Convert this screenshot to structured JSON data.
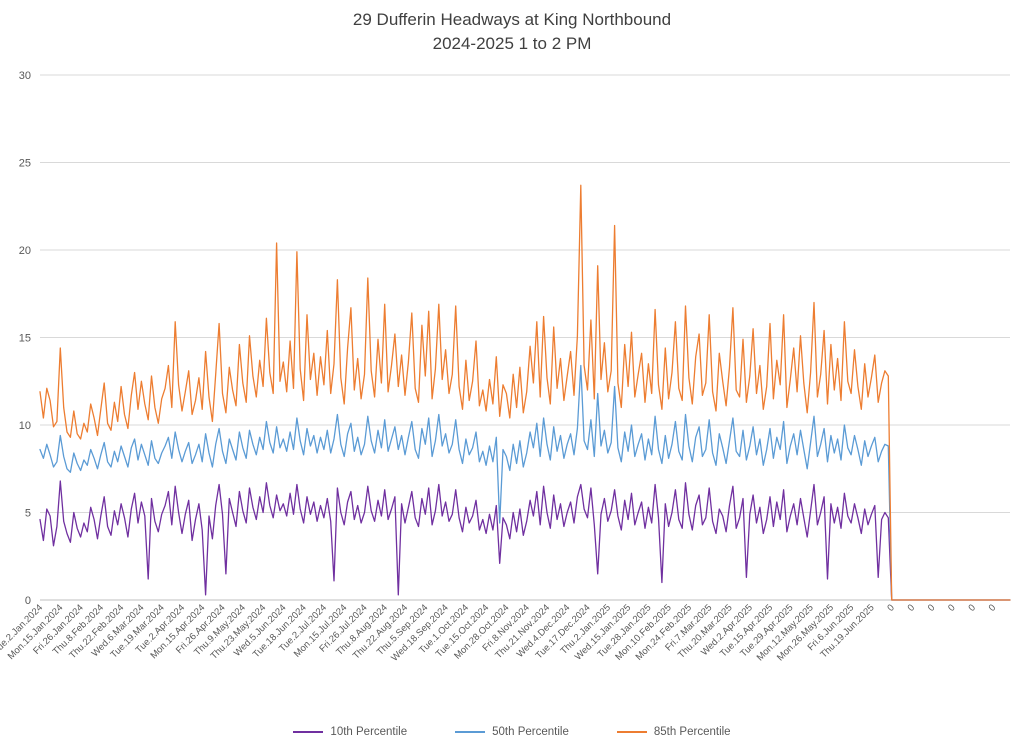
{
  "title": {
    "line1": "29 Dufferin Headways at King Northbound",
    "line2": "2024-2025 1 to 2 PM"
  },
  "colors": {
    "p10": "#7030A0",
    "p50": "#5B9BD5",
    "p85": "#ED7D31",
    "title_text": "#404040",
    "tick_text": "#595959",
    "gridline": "#D9D9D9",
    "axis_line": "#BFBFBF",
    "background": "#FFFFFF"
  },
  "chart_data": {
    "type": "line",
    "title": "29 Dufferin Headways at King Northbound",
    "subtitle": "2024-2025 1 to 2 PM",
    "ylim": [
      0,
      30
    ],
    "yticks": [
      0,
      5,
      10,
      15,
      20,
      25,
      30
    ],
    "grid": true,
    "legend_position": "bottom",
    "tick_every": 6,
    "x_tick_labels": [
      "Tue.2.Jan.2024",
      "Mon.15.Jan.2024",
      "Fri.26.Jan.2024",
      "Thu.8.Feb.2024",
      "Thu.22.Feb.2024",
      "Wed.6.Mar.2024",
      "Tue.19.Mar.2024",
      "Tue.2.Apr.2024",
      "Mon.15.Apr.2024",
      "Fri.26.Apr.2024",
      "Thu.9.May.2024",
      "Thu.23.May.2024",
      "Wed.5.Jun.2024",
      "Tue.18.Jun.2024",
      "Tue.2.Jul.2024",
      "Mon.15.Jul.2024",
      "Fri.26.Jul.2024",
      "Thu.8.Aug.2024",
      "Thu.22.Aug.2024",
      "Thu.5.Sep.2024",
      "Wed.18.Sep.2024",
      "Tue.1.Oct.2024",
      "Tue.15.Oct.2024",
      "Mon.28.Oct.2024",
      "Fri.8.Nov.2024",
      "Thu.21.Nov.2024",
      "Wed.4.Dec.2024",
      "Tue.17.Dec.2024",
      "Thu.2.Jan.2025",
      "Wed.15.Jan.2025",
      "Tue.28.Jan.2025",
      "Mon.10.Feb.2025",
      "Mon.24.Feb.2025",
      "Fri.7.Mar.2025",
      "Thu.20.Mar.2025",
      "Wed.2.Apr.2025",
      "Tue.15.Apr.2025",
      "Tue.29.Apr.2025",
      "Mon.12.May.2025",
      "Mon.26.May.2025",
      "Fri.6.Jun.2025",
      "Thu.19.Jun.2025",
      "0",
      "0",
      "0",
      "0",
      "0",
      "0"
    ],
    "series": [
      {
        "name": "10th Percentile",
        "color": "#7030A0",
        "values": [
          4.6,
          3.4,
          5.2,
          4.8,
          3.1,
          4.2,
          6.8,
          4.5,
          3.8,
          3.3,
          5.0,
          4.1,
          3.6,
          4.4,
          3.9,
          5.3,
          4.6,
          3.5,
          4.8,
          5.9,
          4.2,
          3.7,
          5.1,
          4.3,
          5.5,
          4.7,
          3.6,
          5.2,
          6.1,
          4.4,
          5.6,
          4.8,
          1.2,
          5.8,
          4.5,
          3.9,
          4.9,
          5.4,
          6.2,
          4.3,
          6.5,
          5.0,
          3.8,
          4.9,
          5.7,
          3.4,
          4.6,
          5.5,
          4.0,
          0.3,
          4.8,
          3.5,
          5.4,
          6.6,
          4.9,
          1.5,
          5.8,
          5.0,
          4.2,
          6.2,
          5.1,
          4.4,
          6.4,
          5.3,
          4.6,
          5.9,
          5.0,
          6.7,
          5.4,
          4.7,
          6.0,
          5.1,
          5.5,
          4.8,
          6.1,
          4.9,
          6.6,
          5.2,
          4.4,
          5.9,
          4.9,
          5.6,
          4.5,
          5.4,
          4.7,
          5.8,
          4.5,
          1.1,
          6.4,
          5.0,
          4.3,
          5.6,
          6.2,
          4.6,
          5.4,
          4.4,
          5.0,
          6.5,
          5.1,
          4.5,
          5.7,
          4.8,
          6.3,
          4.6,
          5.2,
          5.9,
          0.3,
          5.5,
          4.4,
          5.3,
          6.2,
          4.7,
          4.2,
          5.8,
          4.9,
          6.4,
          4.3,
          5.1,
          6.6,
          4.8,
          5.6,
          4.5,
          4.9,
          6.3,
          4.7,
          3.9,
          5.3,
          4.4,
          4.8,
          5.7,
          4.0,
          4.6,
          3.8,
          4.9,
          4.0,
          5.4,
          2.1,
          4.7,
          4.3,
          3.5,
          5.0,
          3.9,
          5.2,
          3.7,
          4.5,
          5.7,
          4.8,
          6.2,
          4.3,
          6.5,
          5.0,
          4.1,
          6.0,
          4.6,
          5.5,
          4.2,
          5.0,
          5.6,
          4.4,
          5.9,
          6.6,
          5.2,
          4.7,
          6.4,
          4.3,
          1.5,
          4.9,
          5.8,
          4.5,
          5.1,
          6.3,
          4.8,
          4.0,
          5.7,
          4.6,
          6.1,
          4.3,
          5.0,
          5.6,
          4.1,
          5.3,
          4.4,
          6.6,
          4.7,
          1.0,
          5.5,
          4.2,
          5.0,
          6.3,
          4.6,
          4.1,
          6.7,
          4.9,
          4.0,
          5.4,
          6.0,
          4.3,
          4.7,
          6.4,
          4.5,
          3.8,
          5.2,
          4.8,
          3.9,
          5.4,
          6.5,
          4.1,
          4.7,
          5.8,
          1.3,
          4.9,
          6.0,
          4.4,
          5.3,
          3.8,
          4.6,
          5.9,
          4.2,
          5.6,
          4.6,
          6.3,
          3.9,
          4.8,
          5.5,
          4.3,
          5.8,
          4.7,
          3.6,
          5.1,
          6.6,
          4.3,
          5.0,
          5.9,
          1.2,
          5.5,
          4.4,
          5.3,
          4.1,
          6.1,
          4.8,
          4.4,
          5.5,
          4.7,
          3.8,
          5.2,
          4.3,
          4.9,
          5.4,
          1.3,
          4.6,
          5.0,
          4.7,
          0,
          0,
          0,
          0,
          0,
          0,
          0,
          0,
          0,
          0,
          0,
          0,
          0,
          0,
          0,
          0,
          0,
          0,
          0,
          0,
          0,
          0,
          0,
          0,
          0,
          0,
          0,
          0,
          0,
          0,
          0,
          0,
          0,
          0,
          0,
          0
        ]
      },
      {
        "name": "50th Percentile",
        "color": "#5B9BD5",
        "values": [
          8.6,
          8.1,
          8.9,
          8.3,
          7.6,
          7.9,
          9.4,
          8.2,
          7.5,
          7.3,
          8.4,
          7.8,
          7.4,
          8.0,
          7.7,
          8.6,
          8.1,
          7.5,
          8.3,
          9.0,
          7.9,
          7.6,
          8.5,
          7.9,
          8.8,
          8.2,
          7.6,
          8.7,
          9.2,
          8.0,
          8.9,
          8.3,
          7.7,
          9.1,
          8.1,
          7.8,
          8.4,
          8.8,
          9.3,
          8.1,
          9.6,
          8.6,
          7.9,
          8.5,
          9.0,
          7.8,
          8.3,
          8.9,
          7.9,
          9.5,
          8.4,
          7.6,
          8.9,
          9.8,
          8.5,
          7.8,
          9.2,
          8.6,
          8.0,
          9.6,
          8.7,
          8.1,
          9.7,
          8.9,
          8.3,
          9.3,
          8.6,
          10.2,
          9.0,
          8.4,
          9.9,
          8.7,
          9.2,
          8.5,
          9.6,
          8.6,
          10.4,
          9.1,
          8.3,
          9.8,
          8.8,
          9.4,
          8.4,
          9.3,
          8.6,
          9.7,
          8.4,
          9.2,
          10.6,
          8.9,
          8.2,
          9.5,
          10.1,
          8.5,
          9.3,
          8.3,
          8.9,
          10.5,
          9.1,
          8.4,
          9.7,
          8.7,
          10.3,
          8.5,
          9.2,
          9.9,
          8.6,
          9.4,
          8.3,
          9.3,
          10.2,
          8.6,
          8.1,
          9.8,
          8.9,
          10.4,
          8.2,
          9.1,
          10.6,
          8.8,
          9.5,
          8.4,
          8.9,
          10.3,
          8.6,
          7.8,
          9.2,
          8.3,
          8.7,
          9.6,
          7.9,
          8.5,
          7.7,
          8.8,
          7.9,
          9.3,
          4.4,
          8.6,
          8.2,
          7.4,
          8.9,
          7.8,
          9.1,
          7.6,
          8.4,
          9.6,
          8.7,
          10.1,
          8.2,
          10.4,
          8.9,
          8.0,
          9.9,
          8.5,
          9.4,
          8.1,
          8.9,
          9.5,
          8.3,
          9.8,
          13.4,
          9.1,
          8.6,
          10.3,
          8.2,
          11.8,
          8.8,
          9.7,
          8.4,
          9.0,
          12.2,
          8.7,
          7.9,
          9.6,
          8.5,
          10.0,
          8.2,
          8.9,
          9.5,
          8.0,
          9.2,
          8.3,
          10.5,
          8.6,
          7.8,
          9.4,
          8.1,
          8.9,
          10.2,
          8.5,
          8.0,
          10.6,
          8.8,
          7.9,
          9.3,
          9.9,
          8.2,
          8.6,
          10.3,
          8.4,
          7.7,
          9.5,
          8.7,
          7.8,
          9.1,
          10.4,
          8.5,
          8.2,
          9.7,
          8.0,
          8.8,
          9.9,
          8.3,
          9.2,
          7.7,
          8.6,
          9.8,
          8.1,
          9.3,
          8.6,
          10.2,
          7.8,
          8.8,
          9.5,
          8.3,
          9.7,
          8.6,
          7.5,
          9.0,
          10.5,
          8.2,
          8.9,
          9.8,
          7.9,
          9.4,
          8.4,
          9.2,
          8.0,
          10.0,
          8.7,
          8.3,
          9.4,
          8.6,
          7.7,
          9.1,
          8.2,
          8.8,
          9.3,
          7.9,
          8.5,
          8.9,
          8.8,
          0,
          0,
          0,
          0,
          0,
          0,
          0,
          0,
          0,
          0,
          0,
          0,
          0,
          0,
          0,
          0,
          0,
          0,
          0,
          0,
          0,
          0,
          0,
          0,
          0,
          0,
          0,
          0,
          0,
          0,
          0,
          0,
          0,
          0,
          0,
          0
        ]
      },
      {
        "name": "85th Percentile",
        "color": "#ED7D31",
        "values": [
          11.9,
          10.4,
          12.1,
          11.4,
          9.9,
          10.2,
          14.4,
          11.0,
          9.6,
          9.3,
          10.8,
          9.5,
          9.2,
          10.1,
          9.6,
          11.2,
          10.4,
          9.4,
          10.9,
          12.4,
          10.1,
          9.7,
          11.3,
          10.2,
          12.2,
          10.6,
          9.8,
          11.7,
          13.0,
          10.9,
          12.5,
          11.2,
          10.3,
          12.8,
          11.0,
          10.1,
          11.5,
          12.1,
          13.4,
          11.0,
          15.9,
          12.3,
          10.8,
          11.9,
          13.1,
          10.6,
          11.4,
          12.7,
          10.9,
          14.2,
          11.6,
          10.2,
          12.9,
          15.8,
          11.8,
          10.7,
          13.3,
          12.0,
          11.1,
          14.6,
          12.4,
          11.3,
          15.1,
          12.8,
          11.6,
          13.7,
          12.2,
          16.1,
          13.0,
          11.8,
          20.4,
          12.5,
          13.6,
          11.9,
          14.8,
          12.1,
          19.9,
          13.2,
          11.4,
          16.3,
          12.6,
          14.1,
          11.7,
          13.9,
          12.3,
          15.4,
          11.8,
          13.5,
          18.3,
          12.7,
          11.2,
          14.4,
          16.7,
          12.0,
          13.8,
          11.5,
          12.9,
          18.4,
          13.1,
          11.6,
          14.9,
          12.4,
          16.9,
          11.9,
          13.4,
          15.2,
          12.2,
          14.0,
          11.7,
          13.6,
          16.4,
          12.1,
          11.3,
          15.7,
          12.8,
          16.5,
          11.5,
          13.2,
          16.9,
          12.6,
          14.3,
          11.8,
          12.9,
          16.8,
          12.2,
          10.9,
          13.7,
          11.4,
          12.5,
          14.8,
          11.1,
          12.0,
          10.8,
          12.6,
          11.2,
          13.9,
          10.5,
          12.3,
          11.8,
          10.4,
          12.9,
          11.0,
          13.3,
          10.7,
          11.9,
          14.5,
          12.4,
          15.9,
          11.6,
          16.2,
          12.7,
          11.2,
          15.6,
          12.1,
          13.8,
          11.4,
          12.8,
          14.2,
          11.7,
          15.1,
          23.7,
          13.4,
          12.0,
          16.0,
          11.5,
          19.1,
          12.6,
          14.7,
          11.9,
          13.1,
          21.4,
          12.4,
          11.0,
          14.6,
          12.2,
          15.3,
          11.6,
          12.9,
          14.1,
          11.3,
          13.5,
          11.8,
          16.6,
          12.3,
          10.9,
          14.4,
          11.5,
          13.0,
          15.9,
          12.1,
          11.4,
          16.8,
          12.7,
          11.2,
          13.9,
          15.2,
          11.7,
          12.4,
          16.3,
          11.9,
          10.8,
          14.1,
          12.5,
          11.1,
          13.3,
          16.7,
          12.0,
          11.6,
          14.9,
          11.3,
          12.8,
          15.5,
          11.8,
          13.4,
          10.9,
          12.2,
          15.8,
          11.5,
          13.7,
          12.3,
          16.3,
          11.0,
          12.6,
          14.4,
          11.9,
          15.1,
          12.4,
          10.7,
          13.0,
          17.0,
          11.6,
          12.9,
          15.4,
          11.2,
          14.6,
          12.0,
          13.8,
          11.4,
          15.9,
          12.5,
          11.8,
          14.3,
          12.2,
          10.9,
          13.5,
          11.6,
          12.7,
          14.0,
          11.3,
          12.4,
          13.1,
          12.8,
          0,
          0,
          0,
          0,
          0,
          0,
          0,
          0,
          0,
          0,
          0,
          0,
          0,
          0,
          0,
          0,
          0,
          0,
          0,
          0,
          0,
          0,
          0,
          0,
          0,
          0,
          0,
          0,
          0,
          0,
          0,
          0,
          0,
          0,
          0,
          0
        ]
      }
    ]
  }
}
